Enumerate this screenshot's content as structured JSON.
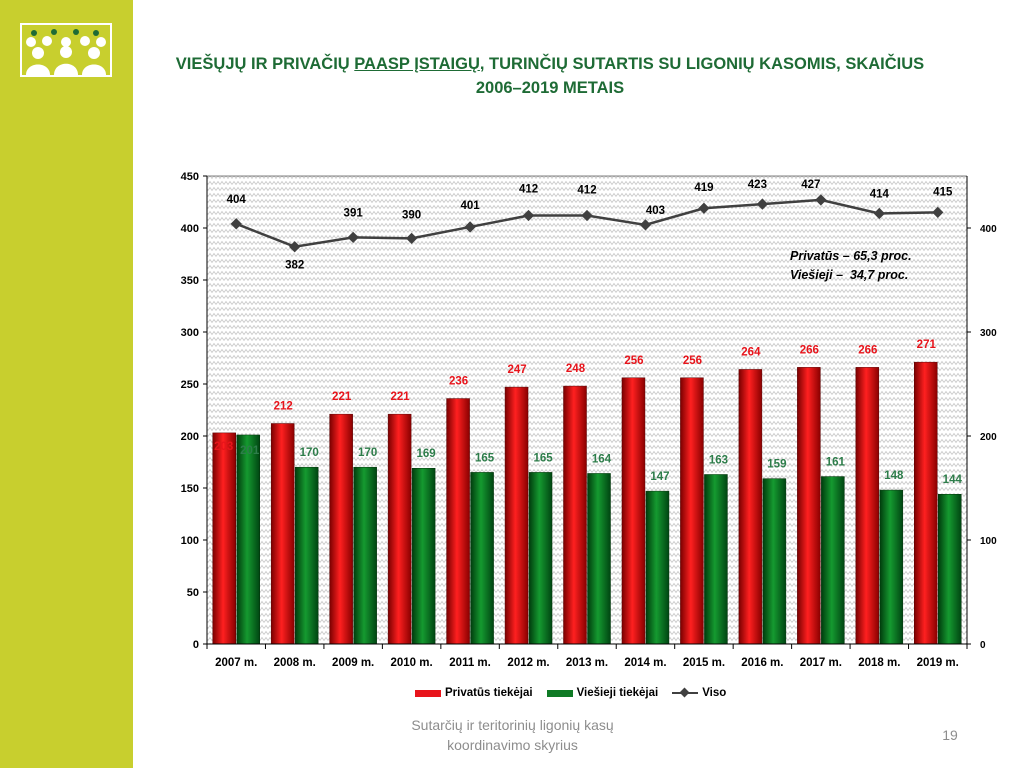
{
  "slide": {
    "title_line1_a": "VIEŠŲJŲ IR PRIVAČIŲ ",
    "title_line1_u": "PAASP ĮSTAIGŲ",
    "title_line1_b": ", TURINČIŲ SUTARTIS SU LIGONIŲ KASOMIS, SKAIČIUS",
    "title_line2": "2006–2019 METAIS",
    "footer": "Sutarčių ir teritorinių ligonių kasų koordinavimo skyrius",
    "page_number": "19",
    "accent_color": "#c8cf2e",
    "title_color": "#1e6b35",
    "logo_icon": "people-group-icon"
  },
  "chart_data": {
    "type": "bar",
    "categories": [
      "2007 m.",
      "2008 m.",
      "2009 m.",
      "2010 m.",
      "2011 m.",
      "2012 m.",
      "2013 m.",
      "2014 m.",
      "2015 m.",
      "2016 m.",
      "2017 m.",
      "2018 m.",
      "2019 m."
    ],
    "series": [
      {
        "name": "Privatūs tiekėjai",
        "type": "bar",
        "color": "#e8141b",
        "label_color": "#e8141b",
        "values": [
          203,
          212,
          221,
          221,
          236,
          247,
          248,
          256,
          256,
          264,
          266,
          266,
          271
        ]
      },
      {
        "name": "Viešieji tiekėjai",
        "type": "bar",
        "color": "#0f7a25",
        "label_color": "#2d7d4a",
        "values": [
          201,
          170,
          170,
          169,
          165,
          165,
          164,
          147,
          163,
          159,
          161,
          148,
          144
        ]
      },
      {
        "name": "Viso",
        "type": "line",
        "color": "#404040",
        "label_color": "#000000",
        "values": [
          404,
          382,
          391,
          390,
          401,
          412,
          412,
          403,
          419,
          423,
          427,
          414,
          415
        ]
      }
    ],
    "ylim": [
      0,
      450
    ],
    "y_ticks": [
      0,
      50,
      100,
      150,
      200,
      250,
      300,
      350,
      400,
      450
    ],
    "y2_ticks": [
      0,
      100,
      200,
      300,
      400
    ],
    "legend_position": "bottom",
    "annotation_lines": [
      "Privatūs – 65,3 proc.",
      "Viešieji –  34,7 proc."
    ],
    "title": "",
    "xlabel": "",
    "ylabel": ""
  }
}
